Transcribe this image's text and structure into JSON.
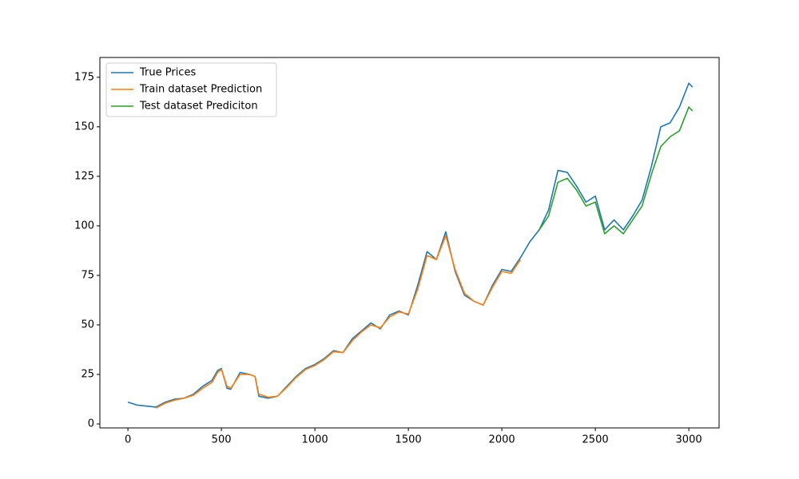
{
  "chart_data": {
    "type": "line",
    "xlim": [
      -150,
      3162
    ],
    "ylim": [
      -2,
      185
    ],
    "xticks": [
      0,
      500,
      1000,
      1500,
      2000,
      2500,
      3000
    ],
    "yticks": [
      0,
      25,
      50,
      75,
      100,
      125,
      150,
      175
    ],
    "legend": "upper left",
    "grid": false,
    "series": [
      {
        "name": "True Prices",
        "color": "#1f77b4",
        "x": [
          0,
          50,
          100,
          150,
          200,
          250,
          300,
          350,
          400,
          450,
          480,
          500,
          530,
          550,
          600,
          650,
          680,
          700,
          750,
          800,
          850,
          900,
          950,
          1000,
          1050,
          1100,
          1150,
          1200,
          1250,
          1300,
          1350,
          1400,
          1450,
          1500,
          1550,
          1600,
          1650,
          1700,
          1750,
          1800,
          1850,
          1900,
          1950,
          2000,
          2050,
          2100,
          2150,
          2200,
          2250,
          2300,
          2350,
          2400,
          2450,
          2500,
          2550,
          2600,
          2650,
          2700,
          2750,
          2800,
          2850,
          2900,
          2950,
          3000,
          3020
        ],
        "values": [
          11,
          9.5,
          9,
          8.5,
          11,
          12.5,
          13,
          15,
          19,
          22,
          27,
          28,
          18,
          17.5,
          26,
          25,
          24,
          14,
          13,
          14,
          19,
          24,
          28,
          30,
          33,
          37,
          36,
          43,
          47,
          51,
          48,
          55,
          57,
          55,
          70,
          87,
          83,
          97,
          77,
          65,
          62,
          60,
          70,
          78,
          77,
          84,
          92,
          98,
          108,
          128,
          127,
          120,
          112,
          115,
          98,
          103,
          98,
          105,
          113,
          130,
          150,
          152,
          160,
          172,
          170
        ]
      },
      {
        "name": "Train dataset Prediction",
        "color": "#ff7f0e",
        "x": [
          150,
          200,
          250,
          300,
          350,
          400,
          450,
          480,
          500,
          530,
          550,
          600,
          650,
          680,
          700,
          750,
          800,
          850,
          900,
          950,
          1000,
          1050,
          1100,
          1150,
          1200,
          1250,
          1300,
          1350,
          1400,
          1450,
          1500,
          1550,
          1600,
          1650,
          1700,
          1750,
          1800,
          1850,
          1900,
          1950,
          2000,
          2050,
          2100
        ],
        "values": [
          8,
          10.5,
          12,
          13,
          14.5,
          18,
          21,
          26,
          27.5,
          19,
          18,
          25,
          25,
          24,
          15,
          13.5,
          14,
          18.5,
          23.5,
          27.5,
          29.5,
          32.5,
          36.5,
          36,
          42,
          46.5,
          50,
          48.5,
          54,
          56.5,
          55.5,
          68,
          85,
          83,
          95,
          78,
          66,
          62,
          60,
          69,
          77,
          76,
          83
        ]
      },
      {
        "name": "Test dataset Prediciton",
        "color": "#2ca02c",
        "x": [
          2200,
          2250,
          2300,
          2350,
          2400,
          2450,
          2500,
          2550,
          2600,
          2650,
          2700,
          2750,
          2800,
          2850,
          2900,
          2950,
          3000,
          3020
        ],
        "values": [
          98,
          105,
          122,
          124,
          118,
          110,
          112,
          96,
          100,
          96,
          103,
          110,
          126,
          140,
          145,
          148,
          160,
          158
        ]
      }
    ]
  }
}
